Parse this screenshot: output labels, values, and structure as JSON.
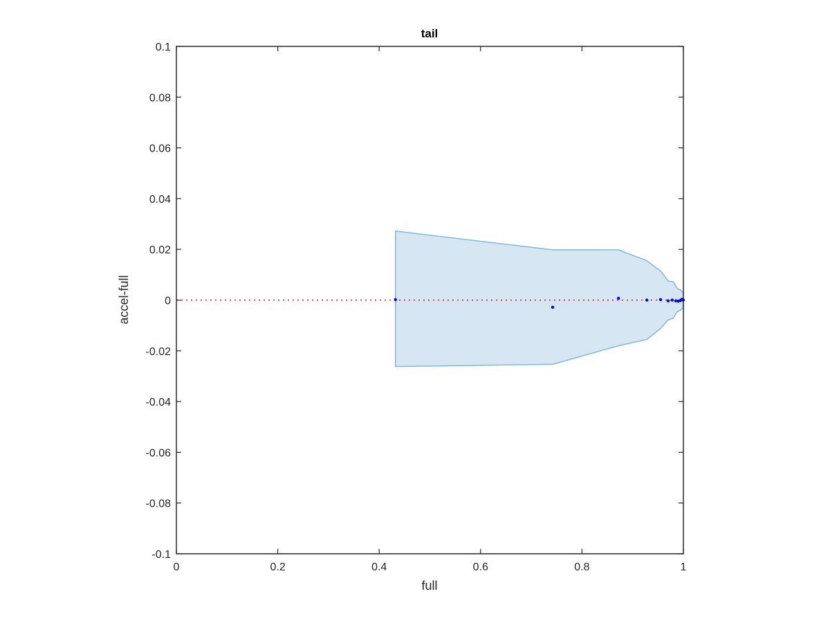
{
  "chart_data": {
    "type": "scatter",
    "title": "tail",
    "xlabel": "full",
    "ylabel": "accel-full",
    "xlim": [
      0,
      1
    ],
    "ylim": [
      -0.1,
      0.1
    ],
    "xticks": [
      0,
      0.2,
      0.4,
      0.6,
      0.8,
      1
    ],
    "xtick_labels": [
      "0",
      "0.2",
      "0.4",
      "0.6",
      "0.8",
      "1"
    ],
    "yticks": [
      -0.1,
      -0.08,
      -0.06,
      -0.04,
      -0.02,
      0,
      0.02,
      0.04,
      0.06,
      0.08,
      0.1
    ],
    "ytick_labels": [
      "-0.1",
      "-0.08",
      "-0.06",
      "-0.04",
      "-0.02",
      "0",
      "0.02",
      "0.04",
      "0.06",
      "0.08",
      "0.1"
    ],
    "grid": false,
    "reference_line": {
      "y": 0,
      "style": "dotted",
      "color": "#ff0000"
    },
    "band": {
      "color": "#d6e7f3",
      "edge_color": "#7fbadc",
      "x": [
        0.432,
        0.742,
        0.872,
        0.928,
        0.955,
        0.97,
        0.98,
        0.988,
        0.993,
        0.997,
        1.0
      ],
      "upper": [
        0.0272,
        0.0198,
        0.0198,
        0.0155,
        0.0115,
        0.0075,
        0.0072,
        0.0045,
        0.0042,
        0.0035,
        0.003
      ],
      "lower": [
        -0.0262,
        -0.0253,
        -0.018,
        -0.0155,
        -0.0112,
        -0.0078,
        -0.0072,
        -0.0045,
        -0.0042,
        -0.0035,
        -0.003
      ]
    },
    "series": [
      {
        "color": "#0000ff",
        "x": [
          0.432,
          0.742,
          0.872,
          0.928,
          0.955,
          0.97,
          0.978,
          0.985,
          0.99,
          0.994,
          0.997,
          0.999,
          1.0
        ],
        "y": [
          0.0002,
          -0.0028,
          0.0007,
          0.0,
          0.0002,
          -0.0003,
          0.0,
          -0.0003,
          -0.0004,
          -0.0002,
          0.0003,
          0.0001,
          0.0
        ]
      }
    ]
  }
}
